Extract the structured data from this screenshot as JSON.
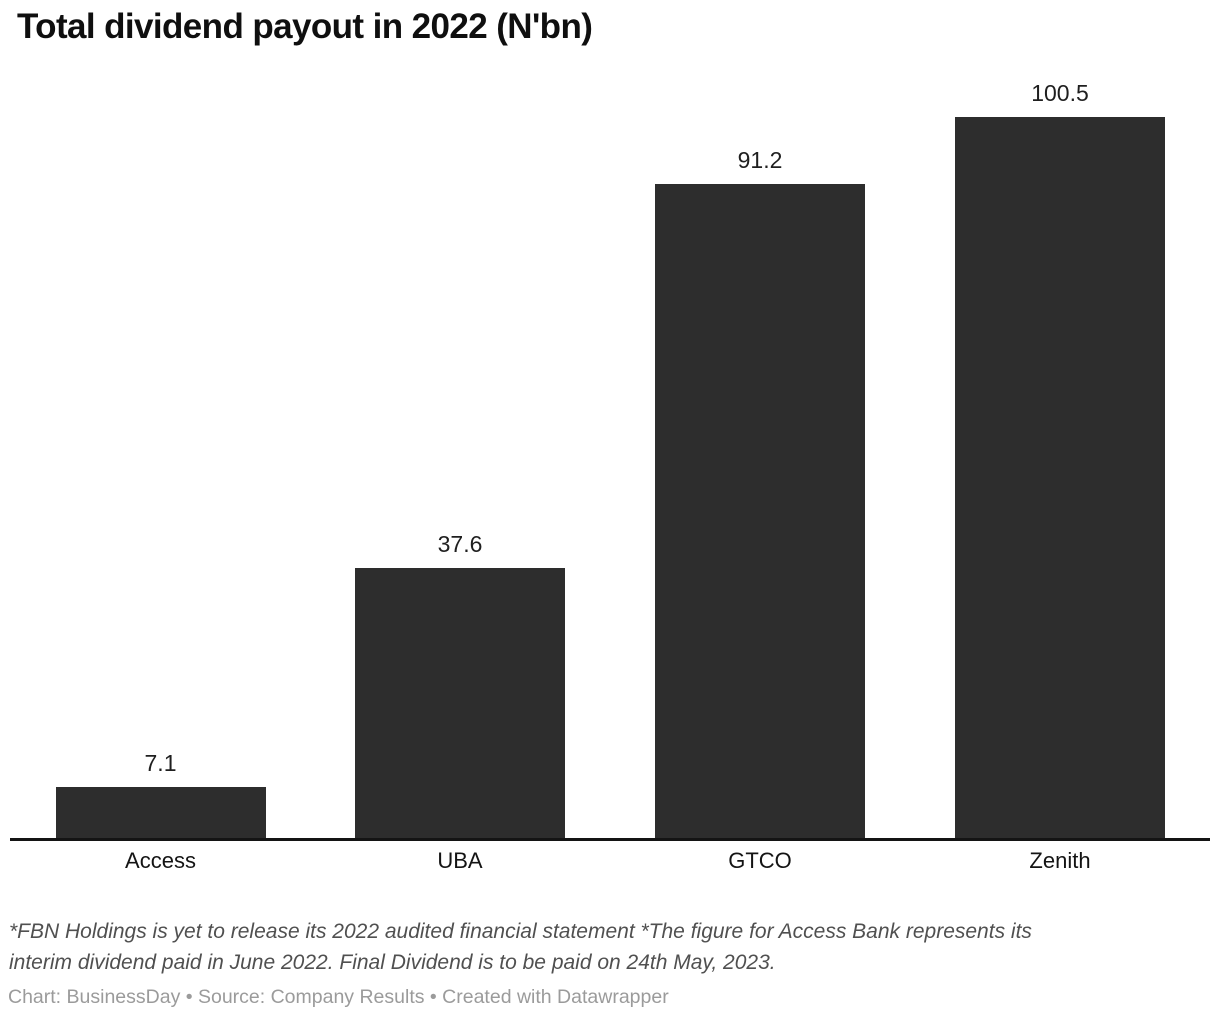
{
  "chart_data": {
    "type": "bar",
    "title": "Total dividend payout in 2022 (N'bn)",
    "categories": [
      "Access",
      "UBA",
      "GTCO",
      "Zenith"
    ],
    "values": [
      7.1,
      37.6,
      91.2,
      100.5
    ],
    "value_labels": [
      "7.1",
      "37.6",
      "91.2",
      "100.5"
    ],
    "xlabel": "",
    "ylabel": "",
    "ylim": [
      0,
      100.5
    ],
    "grid": false,
    "legend": "none",
    "bar_color": "#2d2d2d",
    "axis_color": "#141414"
  },
  "footer": {
    "note_lines": [
      "*FBN Holdings is yet to release its 2022 audited financial statement *The figure for Access Bank represents its",
      "interim dividend paid in June 2022. Final Dividend is to be paid on 24th May, 2023."
    ],
    "credit": "Chart: BusinessDay • Source: Company Results • Created with Datawrapper"
  }
}
